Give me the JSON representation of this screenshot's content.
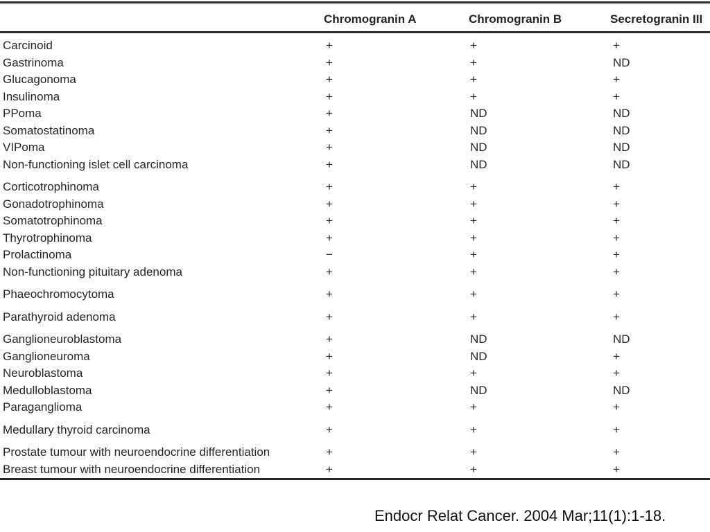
{
  "colors": {
    "background": "#ffffff",
    "rule": "#2b2b2b",
    "table_text": "#262626",
    "citation_text": "#111111"
  },
  "table": {
    "columns": [
      "Chromogranin A",
      "Chromogranin B",
      "Secretogranin III"
    ],
    "groups": [
      [
        {
          "name": "Carcinoid",
          "values": [
            "+",
            "+",
            "+"
          ]
        },
        {
          "name": "Gastrinoma",
          "values": [
            "+",
            "+",
            "ND"
          ]
        },
        {
          "name": "Glucagonoma",
          "values": [
            "+",
            "+",
            "+"
          ]
        },
        {
          "name": "Insulinoma",
          "values": [
            "+",
            "+",
            "+"
          ]
        },
        {
          "name": "PPoma",
          "values": [
            "+",
            "ND",
            "ND"
          ]
        },
        {
          "name": "Somatostatinoma",
          "values": [
            "+",
            "ND",
            "ND"
          ]
        },
        {
          "name": "VIPoma",
          "values": [
            "+",
            "ND",
            "ND"
          ]
        },
        {
          "name": "Non-functioning islet cell carcinoma",
          "values": [
            "+",
            "ND",
            "ND"
          ]
        }
      ],
      [
        {
          "name": "Corticotrophinoma",
          "values": [
            "+",
            "+",
            "+"
          ]
        },
        {
          "name": "Gonadotrophinoma",
          "values": [
            "+",
            "+",
            "+"
          ]
        },
        {
          "name": "Somatotrophinoma",
          "values": [
            "+",
            "+",
            "+"
          ]
        },
        {
          "name": "Thyrotrophinoma",
          "values": [
            "+",
            "+",
            "+"
          ]
        },
        {
          "name": "Prolactinoma",
          "values": [
            "−",
            "+",
            "+"
          ]
        },
        {
          "name": "Non-functioning pituitary adenoma",
          "values": [
            "+",
            "+",
            "+"
          ]
        }
      ],
      [
        {
          "name": "Phaeochromocytoma",
          "values": [
            "+",
            "+",
            "+"
          ]
        }
      ],
      [
        {
          "name": "Parathyroid adenoma",
          "values": [
            "+",
            "+",
            "+"
          ]
        }
      ],
      [
        {
          "name": "Ganglioneuroblastoma",
          "values": [
            "+",
            "ND",
            "ND"
          ]
        },
        {
          "name": "Ganglioneuroma",
          "values": [
            "+",
            "ND",
            "+"
          ]
        },
        {
          "name": "Neuroblastoma",
          "values": [
            "+",
            "+",
            "+"
          ]
        },
        {
          "name": "Medulloblastoma",
          "values": [
            "+",
            "ND",
            "ND"
          ]
        },
        {
          "name": "Paraganglioma",
          "values": [
            "+",
            "+",
            "+"
          ]
        }
      ],
      [
        {
          "name": "Medullary thyroid carcinoma",
          "values": [
            "+",
            "+",
            "+"
          ]
        }
      ],
      [
        {
          "name": "Prostate tumour with neuroendocrine differentiation",
          "values": [
            "+",
            "+",
            "+"
          ]
        },
        {
          "name": "Breast tumour with neuroendocrine differentiation",
          "values": [
            "+",
            "+",
            "+"
          ]
        }
      ]
    ]
  },
  "citation": "Endocr Relat Cancer. 2004 Mar;11(1):1-18."
}
